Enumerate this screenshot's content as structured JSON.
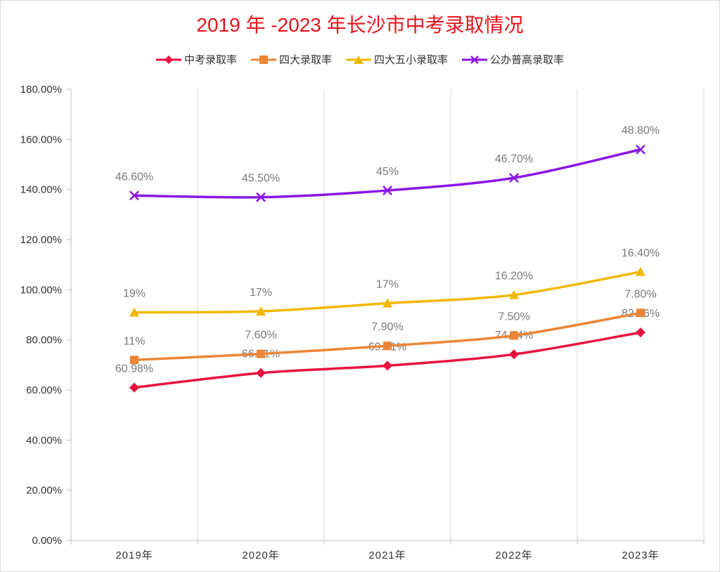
{
  "chart_data": {
    "type": "line",
    "title": "2019 年 -2023 年长沙市中考录取情况",
    "categories": [
      "2019年",
      "2020年",
      "2021年",
      "2022年",
      "2023年"
    ],
    "ylim": [
      0,
      180
    ],
    "yticks": [
      "0.00%",
      "20.00%",
      "40.00%",
      "60.00%",
      "80.00%",
      "100.00%",
      "120.00%",
      "140.00%",
      "160.00%",
      "180.00%"
    ],
    "grid": "vertical",
    "legend_position": "top",
    "series": [
      {
        "name": "中考录取率",
        "color": "#e8123f",
        "marker": "diamond",
        "values": [
          60.98,
          66.81,
          69.71,
          74.24,
          82.96
        ],
        "labels": [
          "60.98%",
          "66.81%",
          "69.71%",
          "74.24%",
          "82.96%"
        ]
      },
      {
        "name": "四大录取率",
        "color": "#ec8535",
        "marker": "square",
        "values": [
          71.98,
          74.41,
          77.61,
          81.74,
          90.76
        ],
        "labels": [
          "11%",
          "7.60%",
          "7.90%",
          "7.50%",
          "7.80%"
        ]
      },
      {
        "name": "四大五小录取率",
        "color": "#f1b800",
        "marker": "triangle",
        "values": [
          90.98,
          91.41,
          94.61,
          97.94,
          107.16
        ],
        "labels": [
          "19%",
          "17%",
          "17%",
          "16.20%",
          "16.40%"
        ]
      },
      {
        "name": "公办普高录取率",
        "color": "#8a16e6",
        "marker": "x",
        "values": [
          137.58,
          136.91,
          139.61,
          144.64,
          155.96
        ],
        "labels": [
          "46.60%",
          "45.50%",
          "45%",
          "46.70%",
          "48.80%"
        ]
      }
    ]
  }
}
